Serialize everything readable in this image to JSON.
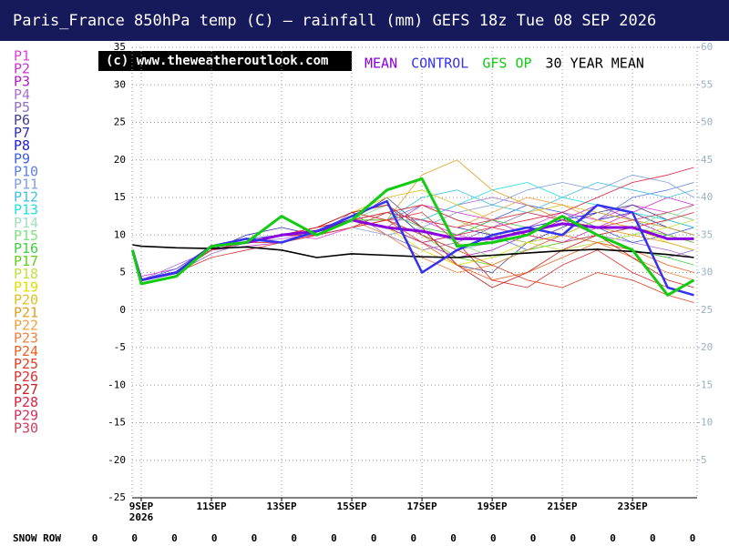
{
  "chart_data": {
    "type": "line",
    "title": "Paris_France 850hPa temp (C) — rainfall (mm)   GEFS 18z Tue 08 SEP 2026",
    "watermark": "(c) www.theweatheroutlook.com",
    "x_year_label": "2026",
    "x": [
      -0.25,
      0,
      1,
      2,
      3,
      4,
      5,
      6,
      7,
      8,
      9,
      10,
      11,
      12,
      13,
      14,
      15,
      15.75
    ],
    "xlim": [
      -0.26,
      15.84
    ],
    "xticks": [
      {
        "value": 0,
        "label": "9SEP"
      },
      {
        "value": 2,
        "label": "11SEP"
      },
      {
        "value": 4,
        "label": "13SEP"
      },
      {
        "value": 6,
        "label": "15SEP"
      },
      {
        "value": 8,
        "label": "17SEP"
      },
      {
        "value": 10,
        "label": "19SEP"
      },
      {
        "value": 12,
        "label": "21SEP"
      },
      {
        "value": 14,
        "label": "23SEP"
      }
    ],
    "ylim": [
      -25,
      35
    ],
    "yticks": [
      -25,
      -20,
      -15,
      -10,
      -5,
      0,
      5,
      10,
      15,
      20,
      25,
      30,
      35
    ],
    "y2lim": [
      0,
      60
    ],
    "y2ticks": [
      5,
      10,
      15,
      20,
      25,
      30,
      35,
      40,
      45,
      50,
      55,
      60
    ],
    "grid": true,
    "series": [
      {
        "name": "P1",
        "color": "#e040e0",
        "values": [
          8,
          4,
          5,
          8,
          9,
          10,
          9.5,
          11,
          13,
          12,
          10,
          9,
          11,
          13,
          12,
          14,
          13,
          12
        ]
      },
      {
        "name": "P2",
        "color": "#d030d0",
        "values": [
          8,
          4.5,
          5.5,
          8.5,
          9,
          10,
          11,
          12,
          11,
          14,
          13,
          12,
          10,
          9,
          11,
          13,
          15,
          14
        ]
      },
      {
        "name": "P3",
        "color": "#b020c0",
        "values": [
          8,
          4,
          5,
          8,
          8.5,
          9,
          10,
          12,
          12,
          9,
          7,
          8,
          10,
          12,
          14,
          12,
          10,
          9
        ]
      },
      {
        "name": "P4",
        "color": "#b070d0",
        "values": [
          8,
          4,
          6,
          8,
          9,
          9.5,
          10,
          11,
          12,
          12,
          14,
          15,
          14,
          12,
          10,
          9,
          8,
          7
        ]
      },
      {
        "name": "P5",
        "color": "#9070c0",
        "values": [
          8,
          4,
          5,
          7.5,
          9,
          10,
          10,
          13,
          10,
          8,
          9,
          11,
          13,
          12,
          10,
          8,
          7,
          8
        ]
      },
      {
        "name": "P6",
        "color": "#404090",
        "values": [
          8,
          4,
          5,
          8,
          9,
          10,
          11,
          12,
          15,
          11,
          6,
          5,
          9,
          11,
          13,
          14,
          12,
          11
        ]
      },
      {
        "name": "P7",
        "color": "#3030b0",
        "values": [
          8,
          4,
          5,
          8,
          10,
          11,
          10,
          12,
          13,
          12,
          11,
          10,
          9,
          10,
          12,
          13,
          11,
          10
        ]
      },
      {
        "name": "P8",
        "color": "#2020e0",
        "values": [
          8,
          4,
          5,
          8,
          9,
          10,
          11,
          13,
          14,
          10,
          8,
          9,
          11,
          12,
          13,
          12,
          11,
          10
        ]
      },
      {
        "name": "P9",
        "color": "#4060e0",
        "values": [
          8,
          4,
          5.5,
          8.5,
          9.5,
          10,
          11,
          12,
          11,
          9,
          10,
          12,
          14,
          13,
          11,
          9,
          10,
          11
        ]
      },
      {
        "name": "P10",
        "color": "#6080e0",
        "values": [
          8,
          4,
          5,
          8,
          9,
          10,
          11,
          13,
          12,
          14,
          12,
          10,
          8,
          10,
          12,
          15,
          16,
          17
        ]
      },
      {
        "name": "P11",
        "color": "#80a0e0",
        "values": [
          8,
          4,
          5,
          8,
          9,
          10,
          10,
          11,
          10,
          11,
          13,
          14,
          16,
          17,
          16,
          18,
          17,
          15
        ]
      },
      {
        "name": "P12",
        "color": "#40c0e0",
        "values": [
          8,
          4,
          5,
          8,
          9,
          10,
          10,
          11,
          12,
          15,
          16,
          14,
          13,
          15,
          17,
          16,
          15,
          16
        ]
      },
      {
        "name": "P13",
        "color": "#20e0e0",
        "values": [
          8,
          4,
          5,
          8,
          9,
          10,
          10,
          12,
          13,
          12,
          14,
          16,
          17,
          15,
          14,
          13,
          12,
          11
        ]
      },
      {
        "name": "P14",
        "color": "#a0e0c0",
        "values": [
          8,
          4,
          5,
          8,
          9,
          9,
          10,
          11,
          12,
          10,
          8,
          9,
          11,
          10,
          9,
          10,
          12,
          14
        ]
      },
      {
        "name": "P15",
        "color": "#80e080",
        "values": [
          8,
          4,
          5,
          8,
          9,
          10,
          10,
          12,
          14,
          11,
          9,
          7,
          8,
          9,
          10,
          11,
          13,
          12
        ]
      },
      {
        "name": "P16",
        "color": "#40d040",
        "values": [
          8,
          4,
          5,
          8,
          9,
          10,
          11,
          12,
          13,
          11,
          10,
          12,
          11,
          10,
          9,
          8,
          7,
          6
        ]
      },
      {
        "name": "P17",
        "color": "#60d020",
        "values": [
          8,
          4,
          5,
          8,
          9,
          10,
          11,
          12,
          12,
          10,
          7,
          6,
          8,
          9,
          10,
          11,
          10,
          9
        ]
      },
      {
        "name": "P18",
        "color": "#c0e040",
        "values": [
          8,
          4,
          5,
          8,
          9,
          10,
          10,
          11,
          13,
          14,
          12,
          10,
          9,
          8,
          9,
          10,
          11,
          12
        ]
      },
      {
        "name": "P19",
        "color": "#e0e000",
        "values": [
          8,
          4,
          5,
          8,
          9,
          10,
          11,
          12,
          11,
          8,
          6,
          7,
          9,
          10,
          12,
          11,
          9,
          8
        ]
      },
      {
        "name": "P20",
        "color": "#e0c020",
        "values": [
          8,
          4,
          5,
          8,
          9,
          10,
          11,
          13,
          15,
          16,
          14,
          12,
          13,
          14,
          13,
          12,
          11,
          10
        ]
      },
      {
        "name": "P21",
        "color": "#e0a020",
        "values": [
          8,
          4,
          5,
          8,
          9,
          10,
          10,
          11,
          12,
          18,
          20,
          16,
          14,
          12,
          11,
          10,
          9,
          8
        ]
      },
      {
        "name": "P22",
        "color": "#f0a040",
        "values": [
          8,
          4,
          5,
          8,
          9,
          10,
          11,
          12,
          13,
          12,
          11,
          13,
          15,
          14,
          12,
          11,
          12,
          13
        ]
      },
      {
        "name": "P23",
        "color": "#f08040",
        "values": [
          8,
          4,
          5,
          8,
          9,
          10,
          11,
          12,
          10,
          7,
          5,
          6,
          8,
          10,
          9,
          7,
          5,
          4
        ]
      },
      {
        "name": "P24",
        "color": "#f06020",
        "values": [
          8,
          4,
          5,
          8,
          9,
          9,
          10,
          11,
          12,
          9,
          6,
          4,
          5,
          7,
          9,
          8,
          6,
          5
        ]
      },
      {
        "name": "P25",
        "color": "#e04020",
        "values": [
          8,
          4,
          5,
          8,
          9,
          10,
          11,
          13,
          12,
          10,
          8,
          6,
          4,
          3,
          5,
          4,
          2,
          1
        ]
      },
      {
        "name": "P26",
        "color": "#e03030",
        "values": [
          8,
          4,
          5,
          7,
          8,
          9,
          10,
          11,
          12,
          13,
          9,
          4,
          3,
          6,
          8,
          5,
          3,
          2
        ]
      },
      {
        "name": "P27",
        "color": "#d02020",
        "values": [
          8,
          4,
          5,
          8,
          9,
          10,
          11,
          13,
          14,
          11,
          6,
          3,
          5,
          8,
          10,
          7,
          4,
          3
        ]
      },
      {
        "name": "P28",
        "color": "#e02040",
        "values": [
          8,
          4,
          5,
          8,
          9,
          10,
          11,
          12,
          13,
          14,
          12,
          11,
          12,
          13,
          15,
          17,
          18,
          19
        ]
      },
      {
        "name": "P29",
        "color": "#d03060",
        "values": [
          8,
          4,
          5,
          8,
          9,
          10,
          10,
          12,
          11,
          9,
          10,
          11,
          10,
          9,
          10,
          11,
          12,
          13
        ]
      },
      {
        "name": "P30",
        "color": "#d04060",
        "values": [
          8,
          4,
          5,
          8,
          9,
          9,
          10,
          11,
          13,
          12,
          11,
          12,
          13,
          12,
          11,
          12,
          13,
          14
        ]
      },
      {
        "name": "30 YEAR MEAN",
        "color": "#000000",
        "values": [
          8.7,
          8.5,
          8.3,
          8.2,
          8.4,
          8,
          7,
          7.5,
          7.3,
          7.1,
          7,
          7.3,
          7.6,
          7.9,
          8.1,
          7.8,
          7.4,
          7
        ]
      },
      {
        "name": "MEAN",
        "color": "#8800dd",
        "values": [
          8,
          4,
          5,
          8.5,
          9,
          10,
          10.5,
          12,
          11,
          10.5,
          9.5,
          9.5,
          10.5,
          11.5,
          11,
          11,
          9.5,
          9.5
        ]
      },
      {
        "name": "CONTROL",
        "color": "#3333ee",
        "values": [
          8,
          4,
          5,
          8.5,
          9.5,
          9,
          10.5,
          12.5,
          14.5,
          5,
          8,
          10,
          11,
          10,
          14,
          13,
          3,
          2
        ]
      },
      {
        "name": "GFS OP",
        "color": "#11cc11",
        "values": [
          8,
          3.5,
          4.5,
          8.5,
          9,
          12.5,
          10,
          12,
          16,
          17.5,
          8.5,
          9,
          10,
          12.5,
          10,
          8,
          2,
          4
        ]
      }
    ],
    "snow_row": {
      "label": "SNOW ROW",
      "values": [
        0,
        0,
        0,
        0,
        0,
        0,
        0,
        0,
        0,
        0,
        0,
        0,
        0,
        0,
        0,
        0
      ]
    }
  }
}
